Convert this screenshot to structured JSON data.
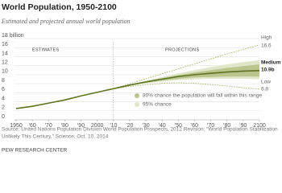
{
  "chart_data": {
    "type": "line",
    "title": "World Population, 1950-2100",
    "subtitle": "Estimated and projected annual world population",
    "x": [
      1950,
      1960,
      1970,
      1980,
      1990,
      2000,
      2010,
      2020,
      2030,
      2040,
      2050,
      2060,
      2070,
      2080,
      2090,
      2100
    ],
    "xlim": [
      1950,
      2100
    ],
    "xticks": [
      1950,
      {
        "value": 1960,
        "label": "'60"
      },
      {
        "value": 1970,
        "label": "'70"
      },
      {
        "value": 1980,
        "label": "'80"
      },
      {
        "value": 1990,
        "label": "'90"
      },
      2000,
      {
        "value": 2010,
        "label": "'10"
      },
      {
        "value": 2020,
        "label": "'20"
      },
      {
        "value": 2030,
        "label": "'30"
      },
      {
        "value": 2040,
        "label": "'40"
      },
      {
        "value": 2050,
        "label": "'50"
      },
      {
        "value": 2060,
        "label": "'60"
      },
      {
        "value": 2070,
        "label": "'70"
      },
      {
        "value": 2080,
        "label": "'80"
      },
      {
        "value": 2090,
        "label": "'90"
      },
      2100
    ],
    "ylim": [
      0,
      18
    ],
    "yticks": [
      0,
      2,
      4,
      6,
      8,
      10,
      12,
      14,
      16,
      {
        "value": 18,
        "label": "18 billion"
      }
    ],
    "grid": true,
    "bands": [
      {
        "name": "95% chance",
        "color": "#e0e6c9",
        "lower": [
          null,
          null,
          null,
          null,
          null,
          null,
          6.9,
          7.5,
          8.1,
          8.5,
          8.8,
          9.0,
          9.1,
          9.1,
          9.1,
          9.0
        ],
        "upper": [
          null,
          null,
          null,
          null,
          null,
          null,
          6.9,
          7.8,
          8.7,
          9.5,
          10.3,
          11.0,
          11.7,
          12.3,
          12.8,
          13.2
        ]
      },
      {
        "name": "80% chance the population will fall within this range",
        "color": "#b9c58d",
        "lower": [
          null,
          null,
          null,
          null,
          null,
          null,
          6.9,
          7.6,
          8.2,
          8.7,
          9.1,
          9.4,
          9.5,
          9.6,
          9.6,
          9.6
        ],
        "upper": [
          null,
          null,
          null,
          null,
          null,
          null,
          6.9,
          7.7,
          8.5,
          9.3,
          9.9,
          10.5,
          11.0,
          11.5,
          11.9,
          12.3
        ]
      }
    ],
    "series": [
      {
        "name": "Estimates",
        "color": "#5f7322",
        "dash": false,
        "values": [
          2.5,
          3.0,
          3.7,
          4.4,
          5.3,
          6.1,
          6.9,
          null,
          null,
          null,
          null,
          null,
          null,
          null,
          null,
          null
        ]
      },
      {
        "name": "High",
        "color": "#a9b86a",
        "dash": true,
        "values": [
          null,
          null,
          null,
          null,
          null,
          null,
          6.9,
          8.0,
          9.1,
          10.2,
          11.3,
          12.4,
          13.5,
          14.6,
          15.6,
          16.6
        ]
      },
      {
        "name": "Low",
        "color": "#a9b86a",
        "dash": true,
        "values": [
          null,
          null,
          null,
          null,
          null,
          null,
          6.9,
          7.4,
          7.8,
          8.1,
          8.2,
          8.1,
          7.8,
          7.5,
          7.1,
          6.8
        ]
      },
      {
        "name": "Medium",
        "color": "#5f7322",
        "dash": false,
        "values": [
          null,
          null,
          null,
          null,
          null,
          null,
          6.9,
          7.7,
          8.4,
          9.0,
          9.6,
          10.0,
          10.3,
          10.6,
          10.8,
          10.9
        ]
      }
    ],
    "annotations": [
      "ESTIMATES",
      "PROJECTIONS",
      "High",
      "16.6",
      "Medium",
      "10.9b",
      "Low",
      "6.8"
    ],
    "source": [
      "Source: United Nations Population Division World Population Prospects, 2012 Revision; “World Population Stabilization",
      "Unlikely This Century,” Science, Oct. 10, 2014"
    ],
    "credit": "PEW RESEARCH CENTER"
  }
}
